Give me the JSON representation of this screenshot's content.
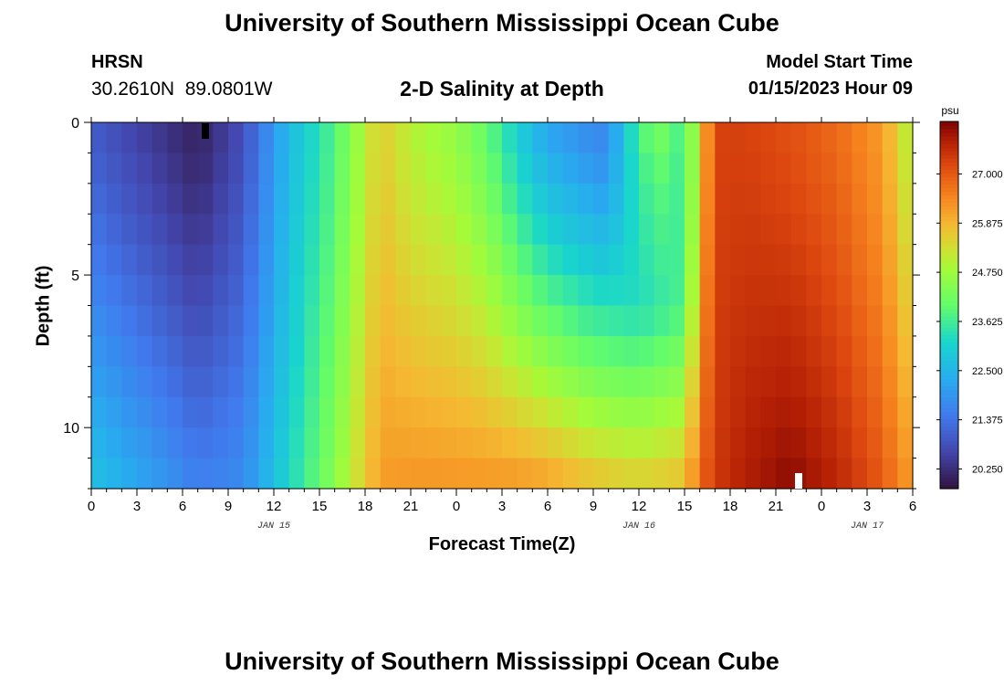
{
  "header": {
    "title": "University of Southern Mississippi Ocean Cube",
    "station": "HRSN",
    "coords": "30.2610N  89.0801W",
    "subtitle": "2-D Salinity at Depth",
    "model_start_label": "Model Start Time",
    "model_start_value": "01/15/2023 Hour 09"
  },
  "footer": {
    "title": "University of Southern Mississippi Ocean Cube"
  },
  "colors": {
    "marker_dark": "#000000",
    "marker_light": "#ffffff"
  },
  "chart_data": {
    "type": "heatmap",
    "title": "2-D Salinity at Depth",
    "xlabel": "Forecast Time(Z)",
    "ylabel": "Depth (ft)",
    "x_unit": "hours since 00Z Jan 15",
    "x_range": [
      0,
      54
    ],
    "x_step_hours": 1,
    "x_tick_values": [
      0,
      3,
      6,
      9,
      12,
      15,
      18,
      21,
      24,
      27,
      30,
      33,
      36,
      39,
      42,
      45,
      48,
      51,
      54
    ],
    "x_tick_labels": [
      "0",
      "3",
      "6",
      "9",
      "12",
      "15",
      "18",
      "21",
      "0",
      "3",
      "6",
      "9",
      "12",
      "15",
      "18",
      "21",
      "0",
      "3",
      "6"
    ],
    "date_labels": [
      {
        "x": 12,
        "label": "JAN 15"
      },
      {
        "x": 36,
        "label": "JAN 16"
      },
      {
        "x": 51,
        "label": "JAN 17"
      }
    ],
    "y_range": [
      0,
      12
    ],
    "y_step_ft": 1,
    "y_tick_values": [
      0,
      5,
      10
    ],
    "y_tick_labels": [
      "0",
      "5",
      "10"
    ],
    "colorbar": {
      "unit": "psu",
      "min": 19.8,
      "max": 28.2,
      "ticks": [
        20.25,
        21.375,
        22.5,
        23.625,
        24.75,
        25.875,
        27.0
      ],
      "tick_labels": [
        "20.250",
        "21.375",
        "22.500",
        "23.625",
        "24.750",
        "25.875",
        "27.000"
      ]
    },
    "markers": [
      {
        "x": 7.5,
        "y": 0,
        "color": "dark",
        "note": "surface marker"
      },
      {
        "x": 46.5,
        "y": 12,
        "color": "light",
        "note": "bottom marker"
      }
    ],
    "salinity_keyframes_psu": [
      {
        "hour": 0,
        "top": 21.0,
        "bottom": 22.8
      },
      {
        "hour": 7,
        "top": 20.05,
        "bottom": 21.6
      },
      {
        "hour": 10,
        "top": 20.8,
        "bottom": 21.8
      },
      {
        "hour": 13,
        "top": 22.6,
        "bottom": 23.2
      },
      {
        "hour": 16,
        "top": 23.8,
        "bottom": 24.5
      },
      {
        "hour": 19,
        "top": 25.6,
        "bottom": 26.2
      },
      {
        "hour": 21,
        "top": 25.0,
        "bottom": 26.3
      },
      {
        "hour": 24,
        "top": 24.6,
        "bottom": 26.3
      },
      {
        "hour": 26,
        "top": 24.0,
        "bottom": 26.3
      },
      {
        "hour": 28,
        "top": 23.0,
        "bottom": 26.3
      },
      {
        "hour": 30,
        "top": 22.2,
        "bottom": 26.2
      },
      {
        "hour": 33,
        "top": 21.7,
        "bottom": 25.8
      },
      {
        "hour": 36,
        "top": 21.6,
        "bottom": 25.6
      },
      {
        "hour": 39,
        "top": 22.3,
        "bottom": 25.8
      },
      {
        "hour": 40,
        "top": 25.5,
        "bottom": 26.8
      },
      {
        "hour": 41,
        "top": 27.3,
        "bottom": 27.4
      },
      {
        "hour": 43,
        "top": 27.3,
        "bottom": 27.8
      },
      {
        "hour": 46,
        "top": 27.1,
        "bottom": 28.1
      },
      {
        "hour": 49,
        "top": 26.8,
        "bottom": 27.7
      },
      {
        "hour": 52,
        "top": 26.2,
        "bottom": 27.0
      },
      {
        "hour": 54,
        "top": 24.8,
        "bottom": 26.2
      }
    ],
    "surface_layer_gradient": {
      "from_hour": 34,
      "to_hour": 40,
      "depth_ft": 6,
      "extra_psu": 2.4
    }
  }
}
